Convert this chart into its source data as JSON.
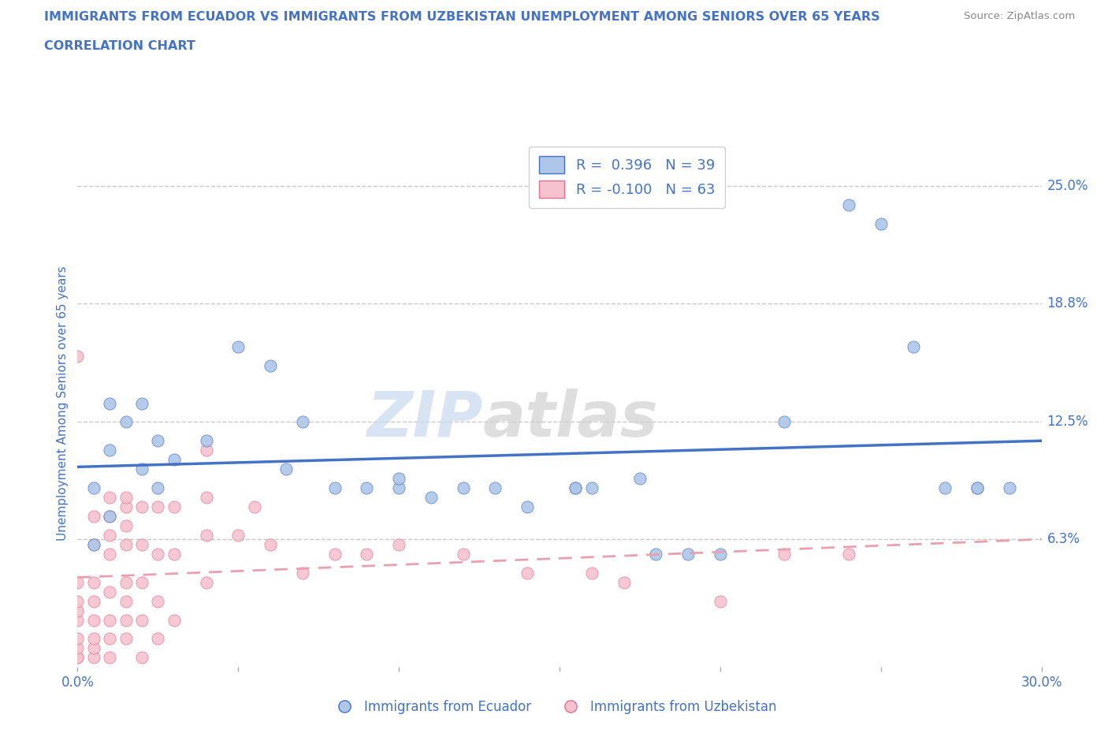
{
  "title_line1": "IMMIGRANTS FROM ECUADOR VS IMMIGRANTS FROM UZBEKISTAN UNEMPLOYMENT AMONG SENIORS OVER 65 YEARS",
  "title_line2": "CORRELATION CHART",
  "source": "Source: ZipAtlas.com",
  "ylabel": "Unemployment Among Seniors over 65 years",
  "watermark_zip": "ZIP",
  "watermark_atlas": "atlas",
  "xlim": [
    0.0,
    0.3
  ],
  "ylim": [
    -0.005,
    0.275
  ],
  "right_yticks": [
    0.063,
    0.125,
    0.188,
    0.25
  ],
  "right_yticklabels": [
    "6.3%",
    "12.5%",
    "18.8%",
    "25.0%"
  ],
  "ecuador_color": "#aec6e8",
  "ecuador_edge_color": "#4472c4",
  "uzbekistan_color": "#f5c2cf",
  "uzbekistan_edge_color": "#e07090",
  "ecuador_line_color": "#4472c4",
  "uzbekistan_line_color": "#e8a0b0",
  "ecuador_R": 0.396,
  "ecuador_N": 39,
  "uzbekistan_R": -0.1,
  "uzbekistan_N": 63,
  "ecuador_scatter_x": [
    0.005,
    0.01,
    0.005,
    0.01,
    0.01,
    0.015,
    0.02,
    0.02,
    0.025,
    0.025,
    0.03,
    0.04,
    0.05,
    0.06,
    0.065,
    0.07,
    0.08,
    0.09,
    0.1,
    0.1,
    0.11,
    0.12,
    0.13,
    0.14,
    0.155,
    0.155,
    0.16,
    0.175,
    0.18,
    0.19,
    0.2,
    0.22,
    0.24,
    0.25,
    0.26,
    0.27,
    0.28,
    0.28,
    0.29
  ],
  "ecuador_scatter_y": [
    0.06,
    0.075,
    0.09,
    0.11,
    0.135,
    0.125,
    0.1,
    0.135,
    0.09,
    0.115,
    0.105,
    0.115,
    0.165,
    0.155,
    0.1,
    0.125,
    0.09,
    0.09,
    0.09,
    0.095,
    0.085,
    0.09,
    0.09,
    0.08,
    0.09,
    0.09,
    0.09,
    0.095,
    0.055,
    0.055,
    0.055,
    0.125,
    0.24,
    0.23,
    0.165,
    0.09,
    0.09,
    0.09,
    0.09
  ],
  "uzbekistan_scatter_x": [
    0.0,
    0.0,
    0.0,
    0.0,
    0.0,
    0.0,
    0.0,
    0.0,
    0.0,
    0.005,
    0.005,
    0.005,
    0.005,
    0.005,
    0.005,
    0.005,
    0.005,
    0.01,
    0.01,
    0.01,
    0.01,
    0.01,
    0.01,
    0.01,
    0.01,
    0.015,
    0.015,
    0.015,
    0.015,
    0.015,
    0.015,
    0.015,
    0.015,
    0.02,
    0.02,
    0.02,
    0.02,
    0.02,
    0.025,
    0.025,
    0.025,
    0.025,
    0.03,
    0.03,
    0.03,
    0.04,
    0.04,
    0.04,
    0.04,
    0.05,
    0.055,
    0.06,
    0.07,
    0.08,
    0.09,
    0.1,
    0.12,
    0.14,
    0.16,
    0.17,
    0.2,
    0.22,
    0.24
  ],
  "uzbekistan_scatter_y": [
    0.0,
    0.0,
    0.005,
    0.01,
    0.02,
    0.025,
    0.03,
    0.04,
    0.16,
    0.0,
    0.005,
    0.01,
    0.02,
    0.03,
    0.04,
    0.06,
    0.075,
    0.0,
    0.01,
    0.02,
    0.035,
    0.055,
    0.065,
    0.075,
    0.085,
    0.01,
    0.02,
    0.03,
    0.04,
    0.06,
    0.07,
    0.08,
    0.085,
    0.0,
    0.02,
    0.04,
    0.06,
    0.08,
    0.01,
    0.03,
    0.055,
    0.08,
    0.02,
    0.055,
    0.08,
    0.04,
    0.065,
    0.085,
    0.11,
    0.065,
    0.08,
    0.06,
    0.045,
    0.055,
    0.055,
    0.06,
    0.055,
    0.045,
    0.045,
    0.04,
    0.03,
    0.055,
    0.055
  ],
  "title_color": "#4472c4",
  "axis_label_color": "#4472c4",
  "tick_color": "#4472c4",
  "grid_color": "#c8c8c8",
  "legend_text_color": "#4472c4",
  "background_color": "#ffffff"
}
